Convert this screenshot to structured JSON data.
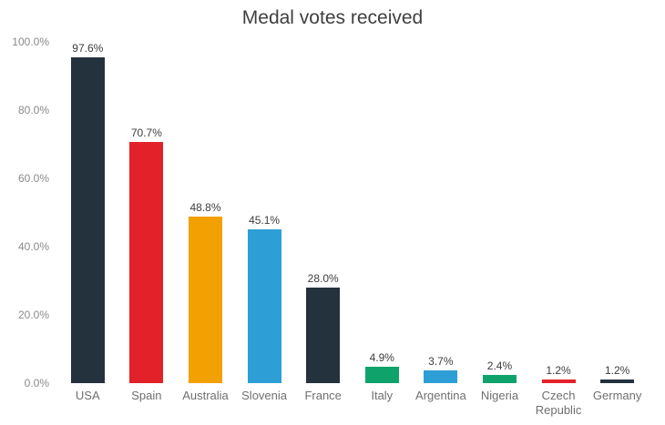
{
  "chart_data": {
    "type": "bar",
    "title": "Medal votes received",
    "categories": [
      "USA",
      "Spain",
      "Australia",
      "Slovenia",
      "France",
      "Italy",
      "Argentina",
      "Nigeria",
      "Czech Republic",
      "Germany"
    ],
    "values": [
      97.6,
      70.7,
      48.8,
      45.1,
      28.0,
      4.9,
      3.7,
      2.4,
      1.2,
      1.2
    ],
    "value_labels": [
      "97.6%",
      "70.7%",
      "48.8%",
      "45.1%",
      "28.0%",
      "4.9%",
      "3.7%",
      "2.4%",
      "1.2%",
      "1.2%"
    ],
    "bar_colors": [
      "#24323e",
      "#e32128",
      "#f3a002",
      "#2d9fd6",
      "#24323e",
      "#0fa36b",
      "#2d9fd6",
      "#0fa36b",
      "#e32128",
      "#24323e"
    ],
    "y_ticks": [
      "0.0%",
      "20.0%",
      "40.0%",
      "60.0%",
      "80.0%",
      "100.0%"
    ],
    "y_tick_values": [
      0,
      20,
      40,
      60,
      80,
      100
    ],
    "ylim": [
      0,
      100
    ],
    "xlabel": "",
    "ylabel": "",
    "grid": false,
    "legend": false
  },
  "colors": {
    "background": "#ffffff",
    "title_text": "#3f3f3f",
    "value_label_text": "#3d3d3d",
    "axis_tick_text": "#8a8a8a",
    "category_label_text": "#6f6f6f"
  }
}
